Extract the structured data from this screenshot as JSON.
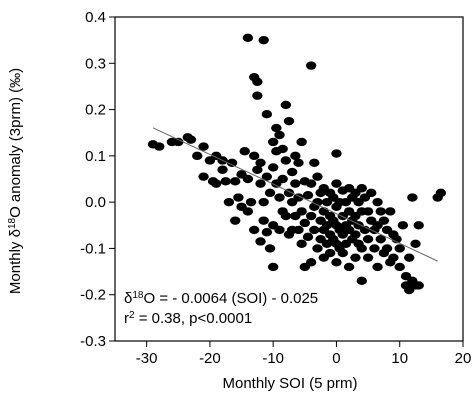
{
  "chart_data": {
    "type": "scatter",
    "title": "",
    "xlabel": "Monthly SOI (5 prm)",
    "ylabel": {
      "prefix": "Monthly ",
      "delta": "δ",
      "sup": "18",
      "suffix": "O anomaly (3prm) (‰)"
    },
    "xlim": [
      -35,
      20
    ],
    "ylim": [
      -0.3,
      0.4
    ],
    "xticks": [
      -30,
      -20,
      -10,
      0,
      10,
      20
    ],
    "yticks": [
      -0.3,
      -0.2,
      -0.1,
      0.0,
      0.1,
      0.2,
      0.3,
      0.4
    ],
    "xtick_labels": [
      "-30",
      "-20",
      "-10",
      "0",
      "10",
      "20"
    ],
    "ytick_labels": [
      "-0.3",
      "-0.2",
      "-0.1",
      "0.0",
      "0.1",
      "0.2",
      "0.3",
      "0.4"
    ],
    "grid": false,
    "point_color": "#000000",
    "regression": {
      "slope": -0.0064,
      "intercept": -0.025,
      "x_range": [
        -29,
        16
      ],
      "color": "#666666"
    },
    "annotations": {
      "equation": {
        "delta": "δ",
        "sup": "18",
        "rest": "O = - 0.0064 (SOI) - 0.025"
      },
      "stats": {
        "r": "r",
        "sup": "2",
        "rest": " = 0.38, p<0.0001"
      }
    },
    "points": [
      [
        -29,
        0.125
      ],
      [
        -28,
        0.12
      ],
      [
        -26,
        0.13
      ],
      [
        -25,
        0.13
      ],
      [
        -23.5,
        0.14
      ],
      [
        -23,
        0.135
      ],
      [
        -22,
        0.1
      ],
      [
        -21,
        0.12
      ],
      [
        -21,
        0.055
      ],
      [
        -20,
        0.09
      ],
      [
        -19.5,
        0.045
      ],
      [
        -19,
        0.1
      ],
      [
        -19,
        0.04
      ],
      [
        -18,
        0.09
      ],
      [
        -18,
        0.07
      ],
      [
        -17.5,
        0.045
      ],
      [
        -17,
        0.0
      ],
      [
        -16.5,
        0.085
      ],
      [
        -16,
        0.045
      ],
      [
        -16,
        -0.04
      ],
      [
        -15.5,
        0.01
      ],
      [
        -15,
        0.06
      ],
      [
        -15,
        -0.01
      ],
      [
        -14.5,
        0.11
      ],
      [
        -14,
        0.355
      ],
      [
        -14,
        0.05
      ],
      [
        -14,
        -0.02
      ],
      [
        -13.5,
        0.0
      ],
      [
        -13,
        0.27
      ],
      [
        -13,
        0.1
      ],
      [
        -13,
        -0.06
      ],
      [
        -12.5,
        0.26
      ],
      [
        -12.5,
        0.23
      ],
      [
        -12.5,
        0.07
      ],
      [
        -12,
        0.085
      ],
      [
        -12,
        0.04
      ],
      [
        -12,
        -0.085
      ],
      [
        -11.5,
        0.35
      ],
      [
        -11.5,
        0.0
      ],
      [
        -11.5,
        -0.04
      ],
      [
        -11,
        0.19
      ],
      [
        -11,
        0.055
      ],
      [
        -11,
        -0.065
      ],
      [
        -10.5,
        0.02
      ],
      [
        -10.5,
        -0.1
      ],
      [
        -10,
        0.13
      ],
      [
        -10,
        0.075
      ],
      [
        -10,
        -0.05
      ],
      [
        -10,
        -0.14
      ],
      [
        -9.5,
        0.16
      ],
      [
        -9.5,
        0.11
      ],
      [
        -9.5,
        0.04
      ],
      [
        -9,
        0.145
      ],
      [
        -9,
        0.01
      ],
      [
        -9,
        -0.06
      ],
      [
        -8.5,
        0.115
      ],
      [
        -8.5,
        0.05
      ],
      [
        -8.5,
        -0.02
      ],
      [
        -8,
        0.21
      ],
      [
        -8,
        0.09
      ],
      [
        -8,
        -0.03
      ],
      [
        -7.5,
        0.175
      ],
      [
        -7.5,
        0.02
      ],
      [
        -7.5,
        -0.07
      ],
      [
        -7,
        0.065
      ],
      [
        -7,
        0.0
      ],
      [
        -7,
        -0.06
      ],
      [
        -6.5,
        0.1
      ],
      [
        -6.5,
        0.04
      ],
      [
        -6.5,
        -0.03
      ],
      [
        -6,
        0.085
      ],
      [
        -6,
        0.01
      ],
      [
        -6,
        -0.06
      ],
      [
        -5.5,
        0.13
      ],
      [
        -5.5,
        -0.02
      ],
      [
        -5.5,
        -0.09
      ],
      [
        -5,
        0.045
      ],
      [
        -5,
        -0.045
      ],
      [
        -5,
        -0.14
      ],
      [
        -4.5,
        0.015
      ],
      [
        -4.5,
        -0.075
      ],
      [
        -4,
        0.295
      ],
      [
        -4,
        0.04
      ],
      [
        -4,
        -0.03
      ],
      [
        -4,
        -0.13
      ],
      [
        -3.5,
        0.085
      ],
      [
        -3.5,
        -0.01
      ],
      [
        -3.5,
        -0.06
      ],
      [
        -3,
        0.055
      ],
      [
        -3,
        0.0
      ],
      [
        -3,
        -0.1
      ],
      [
        -2.5,
        0.02
      ],
      [
        -2.5,
        -0.04
      ],
      [
        -2.5,
        -0.08
      ],
      [
        -2,
        0.03
      ],
      [
        -2,
        -0.02
      ],
      [
        -2,
        -0.06
      ],
      [
        -2,
        -0.12
      ],
      [
        -1.5,
        0.0
      ],
      [
        -1.5,
        -0.05
      ],
      [
        -1.5,
        -0.09
      ],
      [
        -1,
        0.02
      ],
      [
        -1,
        -0.03
      ],
      [
        -1,
        -0.07
      ],
      [
        -1,
        -0.11
      ],
      [
        -0.5,
        0.01
      ],
      [
        -0.5,
        -0.04
      ],
      [
        -0.5,
        -0.08
      ],
      [
        0,
        0.105
      ],
      [
        0,
        0.04
      ],
      [
        0,
        -0.01
      ],
      [
        0,
        -0.05
      ],
      [
        0,
        -0.09
      ],
      [
        0,
        -0.13
      ],
      [
        0.5,
        0.0
      ],
      [
        0.5,
        -0.06
      ],
      [
        0.5,
        -0.1
      ],
      [
        1,
        0.025
      ],
      [
        1,
        -0.03
      ],
      [
        1,
        -0.07
      ],
      [
        1,
        -0.11
      ],
      [
        1.5,
        0.0
      ],
      [
        1.5,
        -0.05
      ],
      [
        1.5,
        -0.09
      ],
      [
        2,
        0.03
      ],
      [
        2,
        -0.02
      ],
      [
        2,
        -0.06
      ],
      [
        2,
        -0.14
      ],
      [
        2.5,
        0.01
      ],
      [
        2.5,
        -0.04
      ],
      [
        2.5,
        -0.08
      ],
      [
        3,
        0.02
      ],
      [
        3,
        -0.03
      ],
      [
        3,
        -0.07
      ],
      [
        3,
        -0.12
      ],
      [
        3.5,
        0.0
      ],
      [
        3.5,
        -0.05
      ],
      [
        3.5,
        -0.09
      ],
      [
        4,
        0.03
      ],
      [
        4,
        -0.02
      ],
      [
        4,
        -0.1
      ],
      [
        4,
        -0.17
      ],
      [
        4.5,
        0.01
      ],
      [
        4.5,
        -0.06
      ],
      [
        5,
        -0.02
      ],
      [
        5,
        -0.08
      ],
      [
        5,
        -0.12
      ],
      [
        5.5,
        0.02
      ],
      [
        5.5,
        -0.04
      ],
      [
        6,
        -0.06
      ],
      [
        6,
        -0.1
      ],
      [
        6.5,
        0.0
      ],
      [
        6.5,
        -0.05
      ],
      [
        6.5,
        -0.14
      ],
      [
        7,
        -0.02
      ],
      [
        7,
        -0.08
      ],
      [
        7.5,
        -0.04
      ],
      [
        7.5,
        -0.11
      ],
      [
        8,
        -0.06
      ],
      [
        8,
        -0.1
      ],
      [
        8.5,
        -0.02
      ],
      [
        8.5,
        -0.13
      ],
      [
        9,
        -0.07
      ],
      [
        9,
        -0.12
      ],
      [
        9.5,
        -0.08
      ],
      [
        10,
        -0.1
      ],
      [
        10,
        -0.14
      ],
      [
        10.5,
        -0.05
      ],
      [
        11,
        -0.16
      ],
      [
        11,
        -0.18
      ],
      [
        11.5,
        -0.12
      ],
      [
        11.5,
        -0.19
      ],
      [
        12,
        0.01
      ],
      [
        12,
        -0.17
      ],
      [
        12.5,
        -0.09
      ],
      [
        12.5,
        -0.18
      ],
      [
        13,
        -0.05
      ],
      [
        13,
        -0.18
      ],
      [
        16,
        0.01
      ],
      [
        16.5,
        0.02
      ]
    ]
  }
}
